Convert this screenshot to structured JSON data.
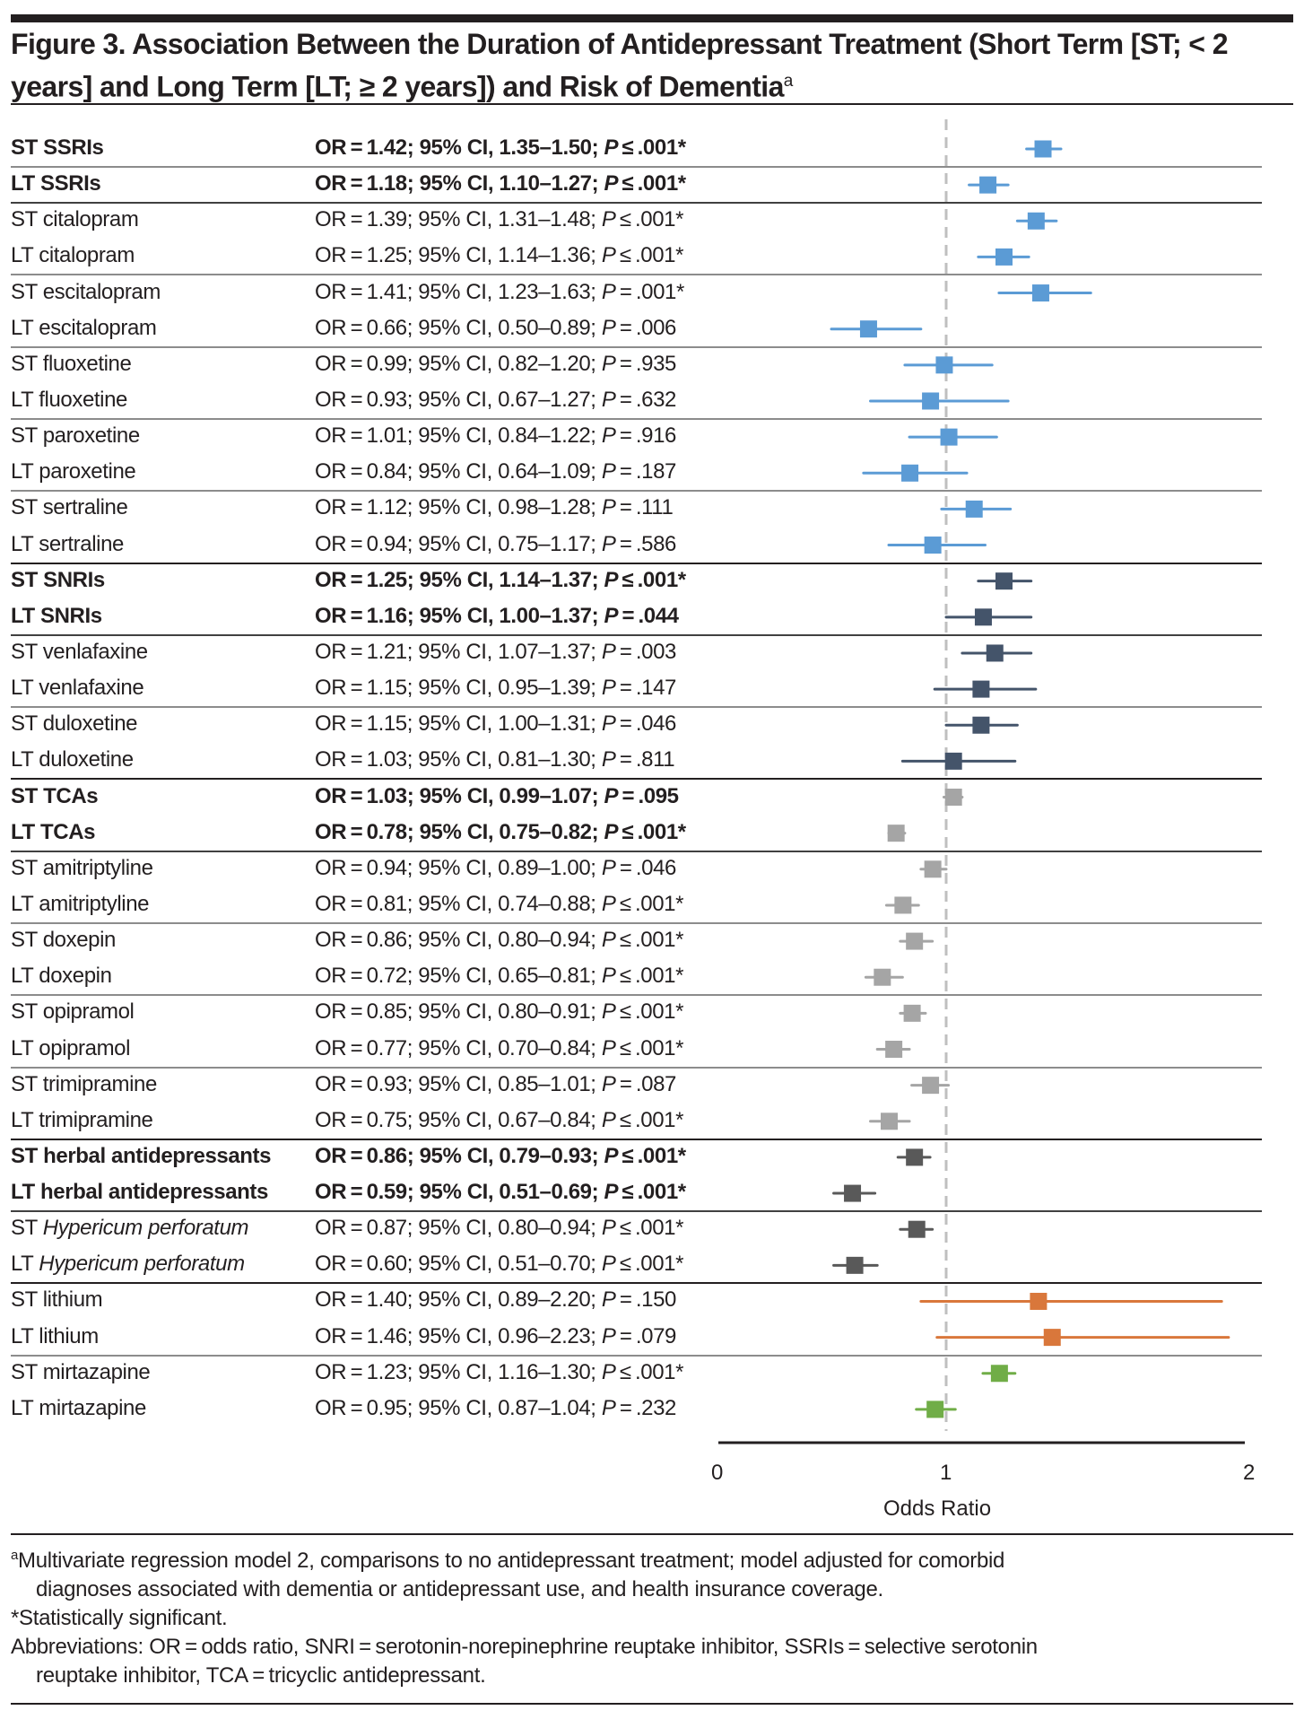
{
  "figure": {
    "title_main": "Figure 3. Association Between the Duration of Antidepressant Treatment (Short Term [ST; < 2 years] and Long Term [LT; ≥ 2 years]) and Risk of Dementia",
    "title_superscript": "a"
  },
  "chart_data": {
    "type": "forest",
    "title": "Association Between the Duration of Antidepressant Treatment (Short Term [ST; < 2 years] and Long Term [LT; ≥ 2 years]) and Risk of Dementia",
    "xlabel": "Odds Ratio",
    "x_ticks": [
      "0",
      "1",
      "2"
    ],
    "reference_line": 1,
    "xlim": [
      0,
      2
    ],
    "colors": {
      "ssri": "#5b9bd5",
      "snri": "#44546a",
      "tca": "#a5a5a5",
      "herbal": "#595959",
      "lithium": "#d9773b",
      "mirtazapine": "#70ad47"
    },
    "rows": [
      {
        "label": "ST SSRIs",
        "bold": true,
        "group": "ssri",
        "or": 1.42,
        "lo": 1.35,
        "hi": 1.5,
        "stat": "OR = 1.42; 95% CI, 1.35–1.50; ",
        "p": "P ≤ .001*",
        "sep_after": "minor-dark"
      },
      {
        "label": "LT SSRIs",
        "bold": true,
        "group": "ssri",
        "or": 1.18,
        "lo": 1.1,
        "hi": 1.27,
        "stat": "OR = 1.18; 95% CI, 1.10–1.27; ",
        "p": "P ≤ .001*",
        "sep_after": "group"
      },
      {
        "label": "ST citalopram",
        "bold": false,
        "group": "ssri",
        "or": 1.39,
        "lo": 1.31,
        "hi": 1.48,
        "stat": "OR = 1.39; 95% CI, 1.31–1.48; ",
        "p": "P ≤ .001*"
      },
      {
        "label": "LT citalopram",
        "bold": false,
        "group": "ssri",
        "or": 1.25,
        "lo": 1.14,
        "hi": 1.36,
        "stat": "OR = 1.25; 95% CI, 1.14–1.36; ",
        "p": "P ≤ .001*",
        "sep_after": "minor"
      },
      {
        "label": "ST escitalopram",
        "bold": false,
        "group": "ssri",
        "or": 1.41,
        "lo": 1.23,
        "hi": 1.63,
        "stat": "OR = 1.41; 95% CI, 1.23–1.63; ",
        "p": "P = .001*"
      },
      {
        "label": "LT escitalopram",
        "bold": false,
        "group": "ssri",
        "or": 0.66,
        "lo": 0.5,
        "hi": 0.89,
        "stat": "OR = 0.66; 95% CI, 0.50–0.89; ",
        "p": "P = .006",
        "sep_after": "minor"
      },
      {
        "label": "ST fluoxetine",
        "bold": false,
        "group": "ssri",
        "or": 0.99,
        "lo": 0.82,
        "hi": 1.2,
        "stat": "OR = 0.99; 95% CI, 0.82–1.20; ",
        "p": "P = .935"
      },
      {
        "label": "LT fluoxetine",
        "bold": false,
        "group": "ssri",
        "or": 0.93,
        "lo": 0.67,
        "hi": 1.27,
        "stat": "OR = 0.93; 95% CI, 0.67–1.27; ",
        "p": "P = .632",
        "sep_after": "minor"
      },
      {
        "label": "ST paroxetine",
        "bold": false,
        "group": "ssri",
        "or": 1.01,
        "lo": 0.84,
        "hi": 1.22,
        "stat": "OR = 1.01; 95% CI, 0.84–1.22; ",
        "p": "P = .916"
      },
      {
        "label": "LT paroxetine",
        "bold": false,
        "group": "ssri",
        "or": 0.84,
        "lo": 0.64,
        "hi": 1.09,
        "stat": "OR = 0.84; 95% CI, 0.64–1.09; ",
        "p": "P = .187",
        "sep_after": "minor"
      },
      {
        "label": "ST sertraline",
        "bold": false,
        "group": "ssri",
        "or": 1.12,
        "lo": 0.98,
        "hi": 1.28,
        "stat": "OR = 1.12; 95% CI, 0.98–1.28; ",
        "p": "P = .111"
      },
      {
        "label": "LT sertraline",
        "bold": false,
        "group": "ssri",
        "or": 0.94,
        "lo": 0.75,
        "hi": 1.17,
        "stat": "OR = 0.94; 95% CI, 0.75–1.17; ",
        "p": "P = .586",
        "sep_after": "major"
      },
      {
        "label": "ST SNRIs",
        "bold": true,
        "group": "snri",
        "or": 1.25,
        "lo": 1.14,
        "hi": 1.37,
        "stat": "OR = 1.25; 95% CI, 1.14–1.37; ",
        "p": "P ≤ .001*"
      },
      {
        "label": "LT SNRIs",
        "bold": true,
        "group": "snri",
        "or": 1.16,
        "lo": 1.0,
        "hi": 1.37,
        "stat": "OR = 1.16; 95% CI, 1.00–1.37; ",
        "p": "P = .044",
        "sep_after": "group"
      },
      {
        "label": "ST venlafaxine",
        "bold": false,
        "group": "snri",
        "or": 1.21,
        "lo": 1.07,
        "hi": 1.37,
        "stat": "OR = 1.21; 95% CI, 1.07–1.37; ",
        "p": "P = .003"
      },
      {
        "label": "LT venlafaxine",
        "bold": false,
        "group": "snri",
        "or": 1.15,
        "lo": 0.95,
        "hi": 1.39,
        "stat": "OR = 1.15; 95% CI, 0.95–1.39; ",
        "p": "P = .147",
        "sep_after": "minor"
      },
      {
        "label": "ST duloxetine",
        "bold": false,
        "group": "snri",
        "or": 1.15,
        "lo": 1.0,
        "hi": 1.31,
        "stat": "OR = 1.15; 95% CI, 1.00–1.31; ",
        "p": "P = .046"
      },
      {
        "label": "LT duloxetine",
        "bold": false,
        "group": "snri",
        "or": 1.03,
        "lo": 0.81,
        "hi": 1.3,
        "stat": "OR = 1.03; 95% CI, 0.81–1.30; ",
        "p": "P = .811",
        "sep_after": "major"
      },
      {
        "label": "ST TCAs",
        "bold": true,
        "group": "tca",
        "or": 1.03,
        "lo": 0.99,
        "hi": 1.07,
        "stat": "OR = 1.03; 95% CI, 0.99–1.07; ",
        "p": "P = .095"
      },
      {
        "label": "LT TCAs",
        "bold": true,
        "group": "tca",
        "or": 0.78,
        "lo": 0.75,
        "hi": 0.82,
        "stat": "OR = 0.78; 95% CI, 0.75–0.82; ",
        "p": "P ≤ .001*",
        "sep_after": "group"
      },
      {
        "label": "ST amitriptyline",
        "bold": false,
        "group": "tca",
        "or": 0.94,
        "lo": 0.89,
        "hi": 1.0,
        "stat": "OR = 0.94; 95% CI, 0.89–1.00; ",
        "p": "P = .046"
      },
      {
        "label": "LT amitriptyline",
        "bold": false,
        "group": "tca",
        "or": 0.81,
        "lo": 0.74,
        "hi": 0.88,
        "stat": "OR = 0.81; 95% CI, 0.74–0.88; ",
        "p": "P ≤ .001*",
        "sep_after": "minor"
      },
      {
        "label": "ST doxepin",
        "bold": false,
        "group": "tca",
        "or": 0.86,
        "lo": 0.8,
        "hi": 0.94,
        "stat": "OR = 0.86; 95% CI, 0.80–0.94; ",
        "p": "P ≤ .001*"
      },
      {
        "label": "LT doxepin",
        "bold": false,
        "group": "tca",
        "or": 0.72,
        "lo": 0.65,
        "hi": 0.81,
        "stat": "OR = 0.72; 95% CI, 0.65–0.81; ",
        "p": "P ≤ .001*",
        "sep_after": "minor"
      },
      {
        "label": "ST opipramol",
        "bold": false,
        "group": "tca",
        "or": 0.85,
        "lo": 0.8,
        "hi": 0.91,
        "stat": "OR = 0.85; 95% CI, 0.80–0.91; ",
        "p": "P ≤ .001*"
      },
      {
        "label": "LT opipramol",
        "bold": false,
        "group": "tca",
        "or": 0.77,
        "lo": 0.7,
        "hi": 0.84,
        "stat": "OR = 0.77; 95% CI, 0.70–0.84; ",
        "p": "P ≤ .001*",
        "sep_after": "minor"
      },
      {
        "label": "ST trimipramine",
        "bold": false,
        "group": "tca",
        "or": 0.93,
        "lo": 0.85,
        "hi": 1.01,
        "stat": "OR = 0.93; 95% CI, 0.85–1.01; ",
        "p": "P = .087"
      },
      {
        "label": "LT trimipramine",
        "bold": false,
        "group": "tca",
        "or": 0.75,
        "lo": 0.67,
        "hi": 0.84,
        "stat": "OR = 0.75; 95% CI, 0.67–0.84; ",
        "p": "P ≤ .001*",
        "sep_after": "major"
      },
      {
        "label": "ST herbal antidepressants",
        "bold": true,
        "group": "herbal",
        "or": 0.86,
        "lo": 0.79,
        "hi": 0.93,
        "stat": "OR = 0.86; 95% CI, 0.79–0.93; ",
        "p": "P ≤ .001*"
      },
      {
        "label": "LT herbal antidepressants",
        "bold": true,
        "group": "herbal",
        "or": 0.59,
        "lo": 0.51,
        "hi": 0.69,
        "stat": "OR = 0.59; 95% CI, 0.51–0.69; ",
        "p": "P ≤ .001*",
        "sep_after": "group"
      },
      {
        "label": "ST Hypericum perforatum",
        "bold": false,
        "italic_part": "Hypericum perforatum",
        "group": "herbal",
        "or": 0.87,
        "lo": 0.8,
        "hi": 0.94,
        "stat": "OR = 0.87; 95% CI, 0.80–0.94; ",
        "p": "P ≤ .001*"
      },
      {
        "label": "LT Hypericum perforatum",
        "bold": false,
        "italic_part": "Hypericum perforatum",
        "group": "herbal",
        "or": 0.6,
        "lo": 0.51,
        "hi": 0.7,
        "stat": "OR = 0.60; 95% CI, 0.51–0.70; ",
        "p": "P ≤ .001*",
        "sep_after": "major"
      },
      {
        "label": "ST lithium",
        "bold": false,
        "group": "lithium",
        "or": 1.4,
        "lo": 0.89,
        "hi": 2.2,
        "stat": "OR = 1.40; 95% CI, 0.89–2.20; ",
        "p": "P = .150"
      },
      {
        "label": "LT lithium",
        "bold": false,
        "group": "lithium",
        "or": 1.46,
        "lo": 0.96,
        "hi": 2.23,
        "stat": "OR = 1.46; 95% CI, 0.96–2.23; ",
        "p": "P = .079",
        "sep_after": "minor"
      },
      {
        "label": "ST mirtazapine",
        "bold": false,
        "group": "mirtazapine",
        "or": 1.23,
        "lo": 1.16,
        "hi": 1.3,
        "stat": "OR = 1.23; 95% CI, 1.16–1.30; ",
        "p": "P ≤ .001*"
      },
      {
        "label": "LT mirtazapine",
        "bold": false,
        "group": "mirtazapine",
        "or": 0.95,
        "lo": 0.87,
        "hi": 1.04,
        "stat": "OR = 0.95; 95% CI, 0.87–1.04; ",
        "p": "P = .232"
      }
    ]
  },
  "footnotes": {
    "a_marker": "a",
    "a_line1": "Multivariate regression model 2, comparisons to no antidepressant treatment; model adjusted for comorbid",
    "a_line2": "diagnoses associated with dementia or antidepressant use, and health insurance coverage.",
    "significance": "*Statistically significant.",
    "abbrev_line1": "Abbreviations: OR = odds ratio, SNRI = serotonin-norepinephrine reuptake inhibitor, SSRIs = selective serotonin",
    "abbrev_line2": "reuptake inhibitor, TCA = tricyclic antidepressant."
  }
}
